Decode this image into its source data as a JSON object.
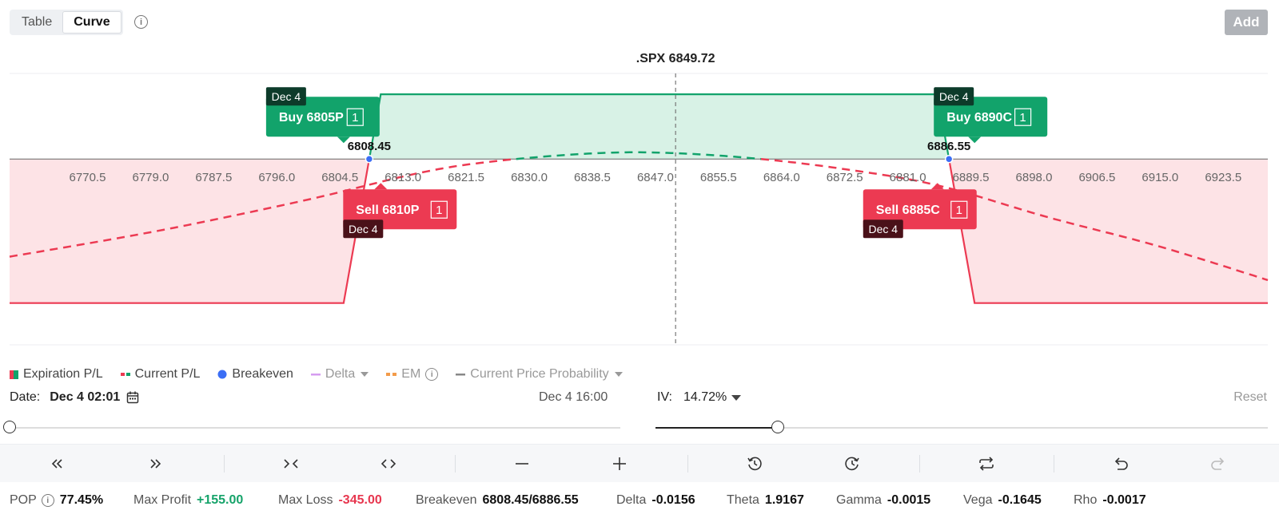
{
  "view_toggle": {
    "table_label": "Table",
    "curve_label": "Curve",
    "active": "Curve"
  },
  "add_label": "Add",
  "underlying": {
    "label": ".SPX 6849.72",
    "price": 6849.72
  },
  "chart_data": {
    "type": "line",
    "x_ticks": [
      6770.5,
      6779.0,
      6787.5,
      6796.0,
      6804.5,
      6813.0,
      6821.5,
      6830.0,
      6838.5,
      6847.0,
      6855.5,
      6864.0,
      6872.5,
      6881.0,
      6889.5,
      6898.0,
      6906.5,
      6915.0,
      6923.5
    ],
    "x_range": [
      6760.0,
      6929.5
    ],
    "y_range": [
      -445,
      205
    ],
    "series": [
      {
        "name": "Expiration P/L",
        "points": [
          [
            6760.0,
            -345
          ],
          [
            6805,
            -345
          ],
          [
            6810,
            155
          ],
          [
            6885,
            155
          ],
          [
            6890,
            -345
          ],
          [
            6929.5,
            -345
          ]
        ]
      },
      {
        "name": "Current P/L",
        "points": [
          [
            6760.0,
            -234
          ],
          [
            6780,
            -172
          ],
          [
            6800,
            -98
          ],
          [
            6815,
            -34
          ],
          [
            6825,
            -6
          ],
          [
            6838,
            13
          ],
          [
            6848,
            15
          ],
          [
            6860,
            2
          ],
          [
            6872,
            -23
          ],
          [
            6885,
            -63
          ],
          [
            6900,
            -140
          ],
          [
            6915,
            -210
          ],
          [
            6929.5,
            -290
          ]
        ]
      }
    ],
    "breakevens": [
      6808.45,
      6886.55
    ],
    "legs": [
      {
        "label": "Buy 6805P",
        "qty": "1",
        "date": "Dec 4",
        "side": "buy",
        "strike": 6805
      },
      {
        "label": "Sell 6810P",
        "qty": "1",
        "date": "Dec 4",
        "side": "sell",
        "strike": 6810
      },
      {
        "label": "Sell 6885C",
        "qty": "1",
        "date": "Dec 4",
        "side": "sell",
        "strike": 6885
      },
      {
        "label": "Buy 6890C",
        "qty": "1",
        "date": "Dec 4",
        "side": "buy",
        "strike": 6890
      }
    ],
    "breakeven_labels": [
      "6808.45",
      "6886.55"
    ]
  },
  "legend": {
    "expiration": "Expiration P/L",
    "current": "Current P/L",
    "breakeven": "Breakeven",
    "delta": "Delta",
    "em": "EM",
    "probability": "Current Price Probability"
  },
  "date_row": {
    "label": "Date:",
    "value": "Dec 4 02:01",
    "end": "Dec 4 16:00",
    "progress": 0.0
  },
  "iv_row": {
    "label": "IV:",
    "value": "14.72%",
    "reset": "Reset",
    "progress": 0.2
  },
  "stats": {
    "pop_label": "POP",
    "pop": "77.45%",
    "max_profit_label": "Max Profit",
    "max_profit": "+155.00",
    "max_loss_label": "Max Loss",
    "max_loss": "-345.00",
    "breakeven_label": "Breakeven",
    "breakeven": "6808.45/6886.55",
    "delta_label": "Delta",
    "delta": "-0.0156",
    "theta_label": "Theta",
    "theta": "1.9167",
    "gamma_label": "Gamma",
    "gamma": "-0.0015",
    "vega_label": "Vega",
    "vega": "-0.1645",
    "rho_label": "Rho",
    "rho": "-0.0017"
  },
  "colors": {
    "green": "#12a36b",
    "red": "#ec3a52",
    "blue": "#3b6ef5"
  }
}
